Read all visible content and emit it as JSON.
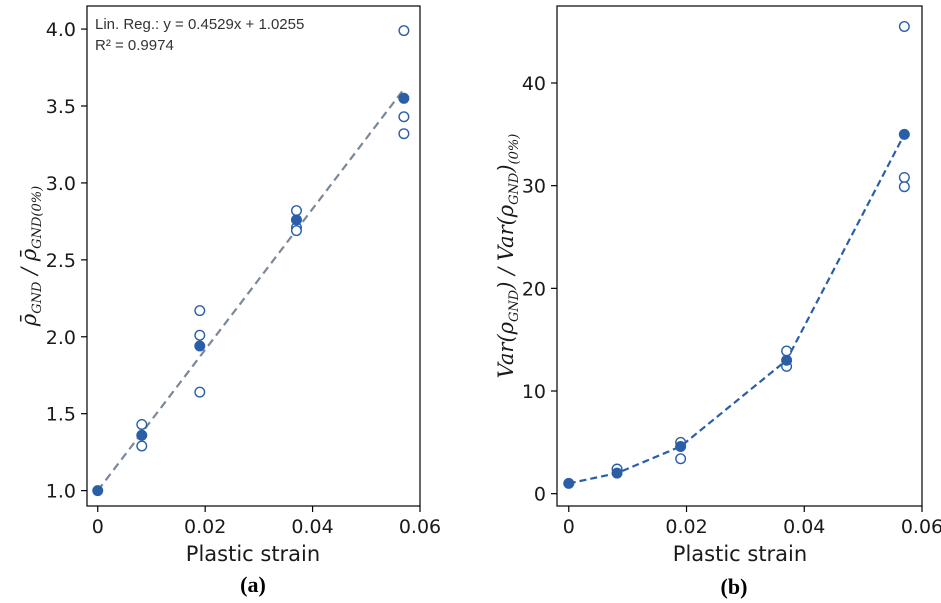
{
  "colors": {
    "marker": "#2a5fa8",
    "fit_line": "#7a8898",
    "axis": "#000000"
  },
  "chart_data": [
    {
      "type": "scatter",
      "panel_label": "(a)",
      "xlabel": "Plastic strain",
      "ylabel": {
        "main": "ρ̄",
        "sub1": "GND",
        "mid": " / ρ̄",
        "sub2": "GND(0%)"
      },
      "xlim": [
        -0.002,
        0.06
      ],
      "ylim": [
        0.9,
        4.15
      ],
      "xticks": [
        0,
        0.02,
        0.04,
        0.06
      ],
      "xtick_labels": [
        "0",
        "0.02",
        "0.04",
        "0.06"
      ],
      "yticks": [
        1.0,
        1.5,
        2.0,
        2.5,
        3.0,
        3.5,
        4.0
      ],
      "ytick_labels": [
        "1.0",
        "1.5",
        "2.0",
        "2.5",
        "3.0",
        "3.5",
        "4.0"
      ],
      "annotation": [
        "Lin. Reg.: y = 0.4529x + 1.0255",
        "R² = 0.9974"
      ],
      "fit_line": {
        "x": [
          0,
          0.057
        ],
        "y": [
          1.0,
          3.61
        ]
      },
      "series": [
        {
          "marker": "open",
          "x": [
            0.0082,
            0.0082,
            0.019,
            0.019,
            0.019,
            0.037,
            0.037,
            0.037,
            0.057,
            0.057,
            0.057
          ],
          "y": [
            1.43,
            1.29,
            2.17,
            2.01,
            1.64,
            2.82,
            2.71,
            2.69,
            3.99,
            3.43,
            3.32
          ]
        },
        {
          "marker": "filled",
          "x": [
            0,
            0.0082,
            0.019,
            0.037,
            0.057
          ],
          "y": [
            1.0,
            1.36,
            1.94,
            2.76,
            3.55
          ]
        }
      ],
      "grid": false
    },
    {
      "type": "line",
      "panel_label": "(b)",
      "xlabel": "Plastic strain",
      "ylabel": {
        "main": "Var(ρ",
        "sub1": "GND",
        "mid": ") / Var(ρ",
        "sub2": "GND",
        "end": ")",
        "sub3": "(0%)"
      },
      "xlim": [
        -0.002,
        0.06
      ],
      "ylim": [
        -1.2,
        47.5
      ],
      "xticks": [
        0,
        0.02,
        0.04,
        0.06
      ],
      "xtick_labels": [
        "0",
        "0.02",
        "0.04",
        "0.06"
      ],
      "yticks": [
        0,
        10,
        20,
        30,
        40
      ],
      "ytick_labels": [
        "0",
        "10",
        "20",
        "30",
        "40"
      ],
      "series": [
        {
          "marker": "open",
          "x": [
            0.0082,
            0.019,
            0.019,
            0.037,
            0.037,
            0.057,
            0.057,
            0.057
          ],
          "y": [
            2.4,
            5.0,
            3.4,
            13.9,
            12.4,
            45.5,
            30.8,
            29.9
          ]
        },
        {
          "marker": "filled",
          "line": "dashed",
          "x": [
            0,
            0.0082,
            0.019,
            0.037,
            0.057
          ],
          "y": [
            1.0,
            2.0,
            4.6,
            13.0,
            35.0
          ]
        }
      ],
      "grid": false
    }
  ]
}
